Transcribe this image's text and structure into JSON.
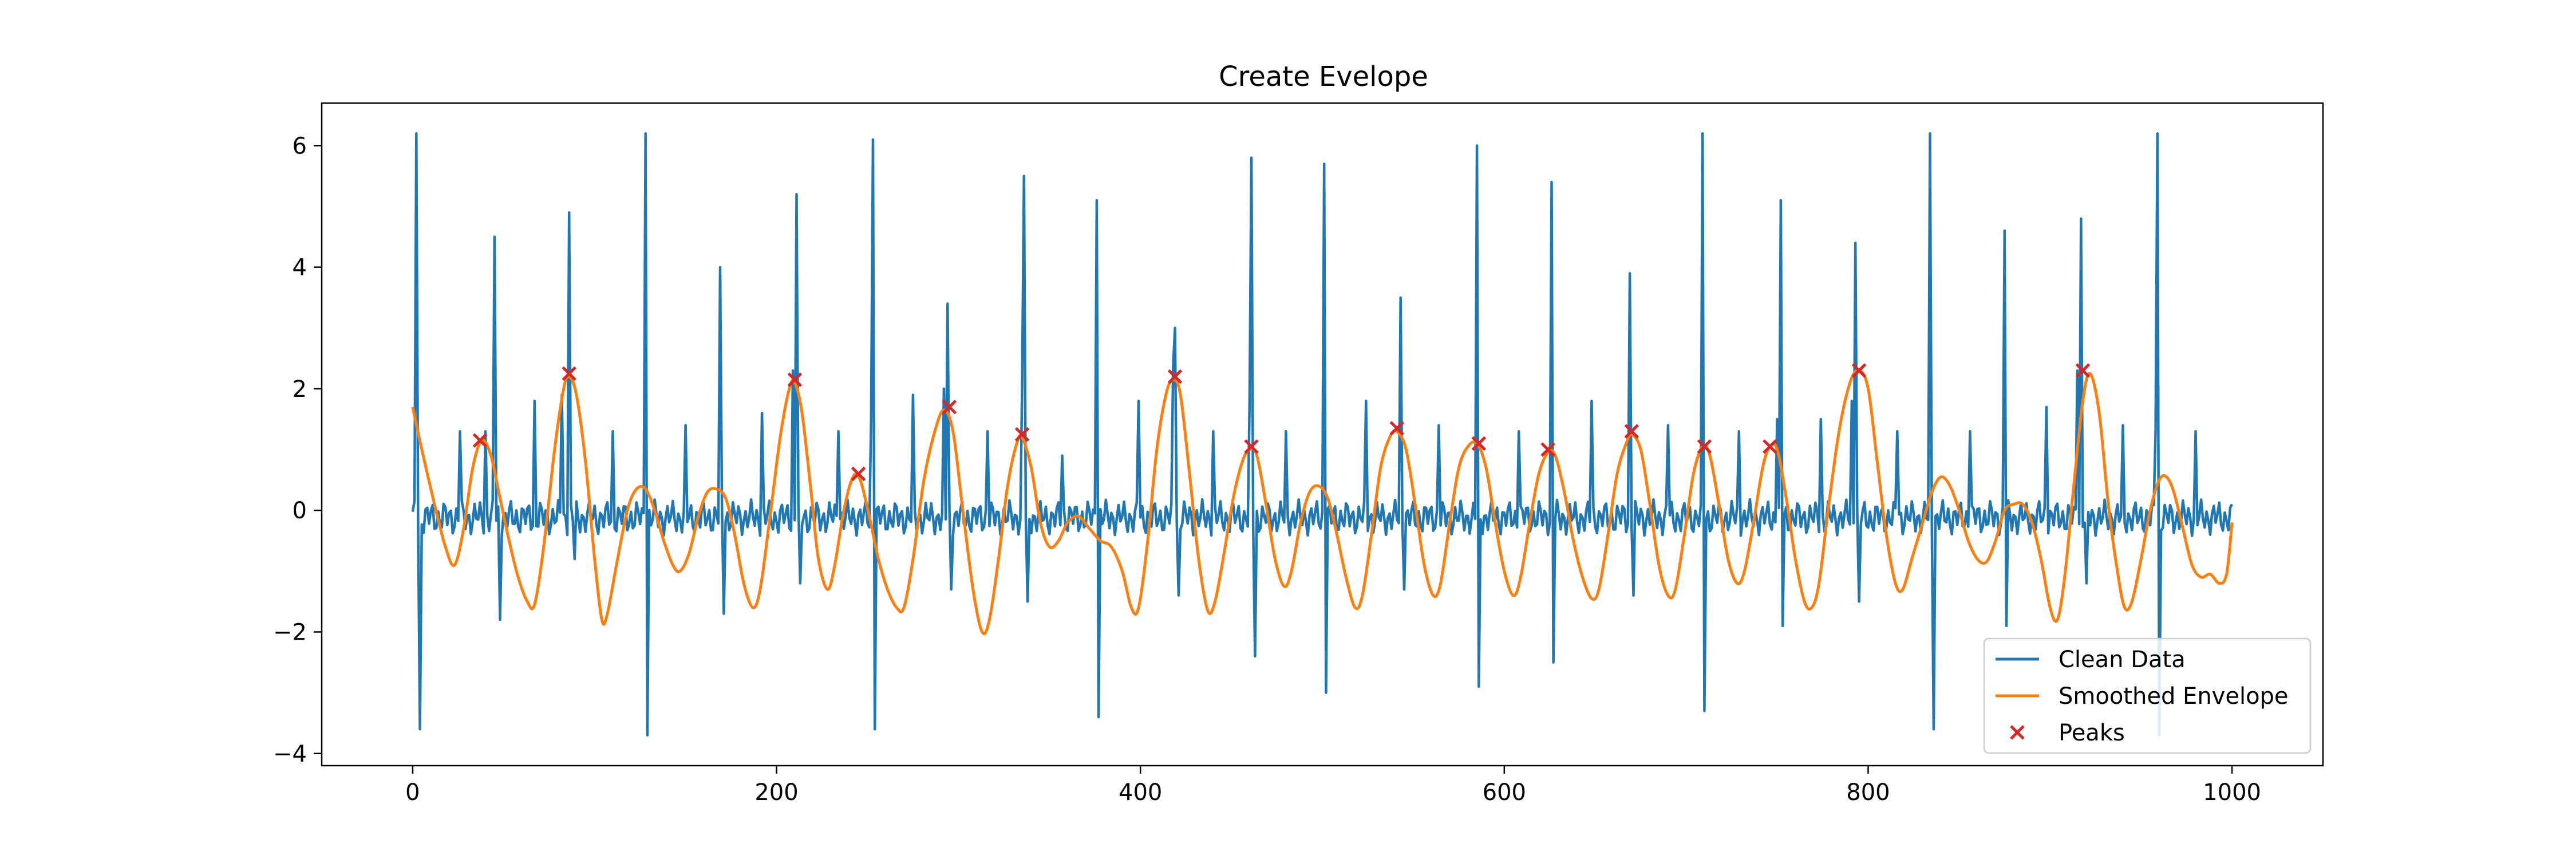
{
  "chart_data": {
    "type": "line",
    "title": "Create Evelope",
    "xlabel": "",
    "ylabel": "",
    "xlim": [
      -50,
      1050
    ],
    "ylim": [
      -4.2,
      6.7
    ],
    "x_ticks": [
      0,
      200,
      400,
      600,
      800,
      1000
    ],
    "y_ticks": [
      -4,
      -2,
      0,
      2,
      4,
      6
    ],
    "grid": false,
    "legend_position": "lower-right",
    "series": [
      {
        "name": "Clean Data",
        "color": "#1f77b4",
        "kind": "line",
        "spikes": [
          [
            2,
            6.2
          ],
          [
            4,
            -3.6
          ],
          [
            26,
            1.3
          ],
          [
            40,
            1.3
          ],
          [
            45,
            4.5
          ],
          [
            48,
            -1.8
          ],
          [
            67,
            1.8
          ],
          [
            82,
            1.9
          ],
          [
            86,
            4.9
          ],
          [
            89,
            -0.8
          ],
          [
            110,
            1.3
          ],
          [
            128,
            6.2
          ],
          [
            129,
            -3.7
          ],
          [
            150,
            1.4
          ],
          [
            169,
            4.0
          ],
          [
            171,
            -1.7
          ],
          [
            192,
            1.6
          ],
          [
            209,
            2.3
          ],
          [
            211,
            5.2
          ],
          [
            213,
            -1.2
          ],
          [
            234,
            1.3
          ],
          [
            252,
            1.5
          ],
          [
            253,
            6.1
          ],
          [
            254,
            -3.6
          ],
          [
            275,
            1.9
          ],
          [
            292,
            2.0
          ],
          [
            294,
            3.4
          ],
          [
            296,
            -1.3
          ],
          [
            316,
            1.3
          ],
          [
            335,
            2.1
          ],
          [
            336,
            5.5
          ],
          [
            338,
            -1.5
          ],
          [
            357,
            0.9
          ],
          [
            376,
            5.1
          ],
          [
            377,
            -3.4
          ],
          [
            399,
            1.8
          ],
          [
            418,
            2.4
          ],
          [
            419,
            3.0
          ],
          [
            421,
            -1.4
          ],
          [
            440,
            1.3
          ],
          [
            460,
            1.8
          ],
          [
            461,
            5.8
          ],
          [
            463,
            -2.4
          ],
          [
            480,
            1.3
          ],
          [
            501,
            5.7
          ],
          [
            502,
            -3.0
          ],
          [
            524,
            1.8
          ],
          [
            543,
            3.5
          ],
          [
            545,
            -1.3
          ],
          [
            564,
            1.4
          ],
          [
            585,
            6.0
          ],
          [
            586,
            -2.9
          ],
          [
            608,
            1.3
          ],
          [
            626,
            5.4
          ],
          [
            627,
            -2.5
          ],
          [
            648,
            1.8
          ],
          [
            669,
            3.9
          ],
          [
            671,
            -1.4
          ],
          [
            690,
            1.4
          ],
          [
            709,
            6.2
          ],
          [
            710,
            -3.3
          ],
          [
            729,
            1.3
          ],
          [
            750,
            1.5
          ],
          [
            752,
            5.1
          ],
          [
            753,
            -1.9
          ],
          [
            774,
            1.5
          ],
          [
            791,
            1.8
          ],
          [
            793,
            4.4
          ],
          [
            795,
            -1.5
          ],
          [
            816,
            1.3
          ],
          [
            834,
            6.2
          ],
          [
            836,
            -3.6
          ],
          [
            856,
            1.3
          ],
          [
            875,
            4.6
          ],
          [
            876,
            -1.9
          ],
          [
            898,
            1.7
          ],
          [
            915,
            2.3
          ],
          [
            917,
            4.8
          ],
          [
            920,
            -1.2
          ],
          [
            940,
            1.4
          ],
          [
            958,
            1.3
          ],
          [
            959,
            6.2
          ],
          [
            960,
            -3.7
          ],
          [
            980,
            1.3
          ]
        ]
      },
      {
        "name": "Smoothed Envelope",
        "color": "#ff7f0e",
        "kind": "line",
        "points": [
          [
            0,
            1.7
          ],
          [
            5,
            1.0
          ],
          [
            12,
            0.1
          ],
          [
            18,
            -0.6
          ],
          [
            23,
            -0.9
          ],
          [
            28,
            -0.3
          ],
          [
            33,
            0.7
          ],
          [
            38,
            1.15
          ],
          [
            43,
            0.9
          ],
          [
            48,
            0.2
          ],
          [
            53,
            -0.5
          ],
          [
            58,
            -1.1
          ],
          [
            63,
            -1.5
          ],
          [
            67,
            -1.55
          ],
          [
            72,
            -0.6
          ],
          [
            78,
            1.0
          ],
          [
            83,
            2.0
          ],
          [
            86,
            2.2
          ],
          [
            90,
            1.9
          ],
          [
            95,
            0.8
          ],
          [
            100,
            -0.8
          ],
          [
            104,
            -1.8
          ],
          [
            107,
            -1.7
          ],
          [
            112,
            -0.9
          ],
          [
            118,
            0.0
          ],
          [
            123,
            0.35
          ],
          [
            128,
            0.35
          ],
          [
            133,
            0.0
          ],
          [
            138,
            -0.5
          ],
          [
            143,
            -0.9
          ],
          [
            147,
            -1.0
          ],
          [
            152,
            -0.7
          ],
          [
            157,
            -0.1
          ],
          [
            162,
            0.3
          ],
          [
            167,
            0.35
          ],
          [
            172,
            0.2
          ],
          [
            177,
            -0.4
          ],
          [
            182,
            -1.2
          ],
          [
            187,
            -1.6
          ],
          [
            191,
            -1.3
          ],
          [
            196,
            -0.2
          ],
          [
            202,
            1.2
          ],
          [
            207,
            2.0
          ],
          [
            210,
            2.1
          ],
          [
            214,
            1.6
          ],
          [
            219,
            0.3
          ],
          [
            223,
            -0.8
          ],
          [
            228,
            -1.3
          ],
          [
            232,
            -0.9
          ],
          [
            237,
            0.0
          ],
          [
            242,
            0.55
          ],
          [
            246,
            0.5
          ],
          [
            251,
            -0.1
          ],
          [
            256,
            -0.8
          ],
          [
            261,
            -1.3
          ],
          [
            266,
            -1.6
          ],
          [
            270,
            -1.6
          ],
          [
            275,
            -0.8
          ],
          [
            281,
            0.5
          ],
          [
            287,
            1.3
          ],
          [
            292,
            1.65
          ],
          [
            297,
            1.3
          ],
          [
            302,
            0.1
          ],
          [
            308,
            -1.3
          ],
          [
            313,
            -2.0
          ],
          [
            317,
            -1.8
          ],
          [
            322,
            -0.8
          ],
          [
            327,
            0.4
          ],
          [
            332,
            1.1
          ],
          [
            335,
            1.2
          ],
          [
            340,
            0.7
          ],
          [
            345,
            -0.2
          ],
          [
            350,
            -0.6
          ],
          [
            355,
            -0.5
          ],
          [
            360,
            -0.2
          ],
          [
            366,
            -0.1
          ],
          [
            372,
            -0.3
          ],
          [
            378,
            -0.5
          ],
          [
            384,
            -0.6
          ],
          [
            390,
            -1.0
          ],
          [
            395,
            -1.6
          ],
          [
            399,
            -1.6
          ],
          [
            404,
            -0.5
          ],
          [
            409,
            1.0
          ],
          [
            414,
            1.9
          ],
          [
            418,
            2.15
          ],
          [
            422,
            1.9
          ],
          [
            427,
            0.6
          ],
          [
            432,
            -0.8
          ],
          [
            437,
            -1.65
          ],
          [
            441,
            -1.5
          ],
          [
            446,
            -0.7
          ],
          [
            451,
            0.2
          ],
          [
            456,
            0.8
          ],
          [
            460,
            1.0
          ],
          [
            464,
            0.9
          ],
          [
            469,
            0.1
          ],
          [
            474,
            -0.8
          ],
          [
            479,
            -1.25
          ],
          [
            483,
            -1.0
          ],
          [
            488,
            -0.2
          ],
          [
            493,
            0.3
          ],
          [
            498,
            0.4
          ],
          [
            503,
            0.2
          ],
          [
            508,
            -0.4
          ],
          [
            513,
            -1.1
          ],
          [
            518,
            -1.6
          ],
          [
            522,
            -1.4
          ],
          [
            527,
            -0.4
          ],
          [
            532,
            0.7
          ],
          [
            537,
            1.2
          ],
          [
            541,
            1.3
          ],
          [
            546,
            1.0
          ],
          [
            551,
            0.1
          ],
          [
            556,
            -0.9
          ],
          [
            561,
            -1.4
          ],
          [
            565,
            -1.2
          ],
          [
            570,
            -0.2
          ],
          [
            575,
            0.7
          ],
          [
            580,
            1.05
          ],
          [
            585,
            1.1
          ],
          [
            590,
            0.7
          ],
          [
            595,
            -0.2
          ],
          [
            600,
            -1.0
          ],
          [
            605,
            -1.4
          ],
          [
            609,
            -1.1
          ],
          [
            614,
            -0.2
          ],
          [
            619,
            0.6
          ],
          [
            624,
            0.95
          ],
          [
            628,
            0.9
          ],
          [
            633,
            0.3
          ],
          [
            638,
            -0.5
          ],
          [
            643,
            -1.1
          ],
          [
            648,
            -1.45
          ],
          [
            652,
            -1.3
          ],
          [
            657,
            -0.4
          ],
          [
            662,
            0.6
          ],
          [
            667,
            1.1
          ],
          [
            670,
            1.25
          ],
          [
            675,
            1.0
          ],
          [
            680,
            0.1
          ],
          [
            685,
            -0.9
          ],
          [
            690,
            -1.4
          ],
          [
            694,
            -1.3
          ],
          [
            699,
            -0.4
          ],
          [
            704,
            0.6
          ],
          [
            709,
            1.05
          ],
          [
            713,
            0.9
          ],
          [
            718,
            0.1
          ],
          [
            723,
            -0.8
          ],
          [
            728,
            -1.2
          ],
          [
            732,
            -1.0
          ],
          [
            737,
            -0.2
          ],
          [
            742,
            0.7
          ],
          [
            746,
            1.05
          ],
          [
            750,
            1.0
          ],
          [
            755,
            0.2
          ],
          [
            760,
            -0.8
          ],
          [
            765,
            -1.5
          ],
          [
            769,
            -1.6
          ],
          [
            773,
            -1.2
          ],
          [
            778,
            0.0
          ],
          [
            784,
            1.3
          ],
          [
            790,
            2.1
          ],
          [
            795,
            2.3
          ],
          [
            800,
            2.0
          ],
          [
            805,
            0.8
          ],
          [
            810,
            -0.4
          ],
          [
            815,
            -1.2
          ],
          [
            819,
            -1.3
          ],
          [
            824,
            -0.8
          ],
          [
            830,
            -0.2
          ],
          [
            835,
            0.3
          ],
          [
            840,
            0.55
          ],
          [
            845,
            0.4
          ],
          [
            850,
            0.0
          ],
          [
            855,
            -0.5
          ],
          [
            860,
            -0.8
          ],
          [
            865,
            -0.85
          ],
          [
            870,
            -0.5
          ],
          [
            875,
            0.0
          ],
          [
            880,
            0.1
          ],
          [
            885,
            0.1
          ],
          [
            890,
            -0.2
          ],
          [
            895,
            -0.8
          ],
          [
            900,
            -1.6
          ],
          [
            904,
            -1.8
          ],
          [
            908,
            -1.1
          ],
          [
            913,
            0.4
          ],
          [
            918,
            1.8
          ],
          [
            922,
            2.25
          ],
          [
            927,
            1.6
          ],
          [
            932,
            0.1
          ],
          [
            937,
            -1.0
          ],
          [
            941,
            -1.6
          ],
          [
            945,
            -1.5
          ],
          [
            950,
            -0.8
          ],
          [
            955,
            0.0
          ],
          [
            960,
            0.5
          ],
          [
            964,
            0.55
          ],
          [
            968,
            0.3
          ],
          [
            973,
            -0.3
          ],
          [
            978,
            -0.9
          ],
          [
            983,
            -1.1
          ],
          [
            988,
            -1.05
          ],
          [
            993,
            -1.2
          ],
          [
            997,
            -1.05
          ],
          [
            1000,
            -0.2
          ]
        ]
      },
      {
        "name": "Peaks",
        "color": "#d62728",
        "kind": "scatter",
        "marker": "x",
        "points": [
          [
            37,
            1.15
          ],
          [
            86,
            2.25
          ],
          [
            210,
            2.15
          ],
          [
            245,
            0.6
          ],
          [
            295,
            1.7
          ],
          [
            335,
            1.25
          ],
          [
            419,
            2.2
          ],
          [
            461,
            1.05
          ],
          [
            541,
            1.35
          ],
          [
            586,
            1.1
          ],
          [
            624,
            1.0
          ],
          [
            670,
            1.3
          ],
          [
            710,
            1.05
          ],
          [
            746,
            1.05
          ],
          [
            795,
            2.3
          ],
          [
            918,
            2.3
          ]
        ]
      }
    ]
  }
}
